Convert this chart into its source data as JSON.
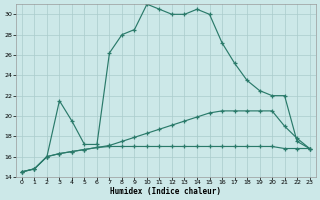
{
  "xlabel": "Humidex (Indice chaleur)",
  "bg_color": "#cce8e8",
  "grid_color": "#aacccc",
  "line_color": "#2a7a6a",
  "xlim": [
    -0.5,
    23.5
  ],
  "ylim": [
    14,
    31
  ],
  "xticks": [
    0,
    1,
    2,
    3,
    4,
    5,
    6,
    7,
    8,
    9,
    10,
    11,
    12,
    13,
    14,
    15,
    16,
    17,
    18,
    19,
    20,
    21,
    22,
    23
  ],
  "yticks": [
    14,
    16,
    18,
    20,
    22,
    24,
    26,
    28,
    30
  ],
  "line1_x": [
    0,
    1,
    2,
    3,
    4,
    5,
    6,
    7,
    8,
    9,
    10,
    11,
    12,
    13,
    14,
    15,
    16,
    17,
    18,
    19,
    20,
    21,
    22,
    23
  ],
  "line1_y": [
    14.5,
    14.8,
    16.0,
    21.5,
    19.5,
    17.2,
    17.2,
    26.2,
    28.0,
    28.5,
    31.0,
    30.5,
    30.0,
    30.0,
    30.5,
    30.0,
    27.2,
    25.2,
    23.5,
    22.5,
    22.0,
    22.0,
    17.5,
    16.8
  ],
  "line2_x": [
    0,
    1,
    2,
    3,
    4,
    5,
    6,
    7,
    8,
    9,
    10,
    11,
    12,
    13,
    14,
    15,
    16,
    17,
    18,
    19,
    20,
    21,
    22,
    23
  ],
  "line2_y": [
    14.5,
    14.8,
    16.0,
    16.3,
    16.5,
    16.7,
    16.9,
    17.1,
    17.5,
    17.9,
    18.3,
    18.7,
    19.1,
    19.5,
    19.9,
    20.3,
    20.5,
    20.5,
    20.5,
    20.5,
    20.5,
    19.0,
    17.8,
    16.8
  ],
  "line3_x": [
    0,
    1,
    2,
    3,
    4,
    5,
    6,
    7,
    8,
    9,
    10,
    11,
    12,
    13,
    14,
    15,
    16,
    17,
    18,
    19,
    20,
    21,
    22,
    23
  ],
  "line3_y": [
    14.5,
    14.8,
    16.0,
    16.3,
    16.5,
    16.7,
    16.9,
    17.0,
    17.0,
    17.0,
    17.0,
    17.0,
    17.0,
    17.0,
    17.0,
    17.0,
    17.0,
    17.0,
    17.0,
    17.0,
    17.0,
    16.8,
    16.8,
    16.8
  ]
}
